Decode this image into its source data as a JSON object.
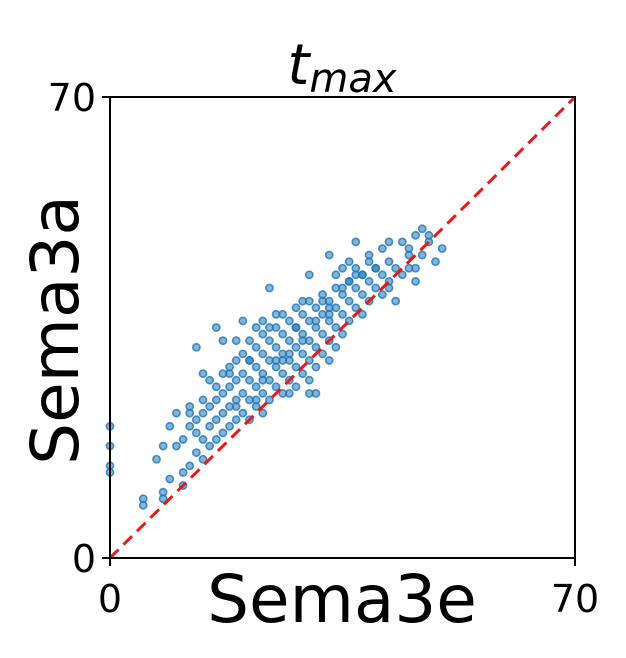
{
  "chart_data": {
    "type": "scatter",
    "title": {
      "main": "t",
      "sub": "max"
    },
    "xlabel": "Sema3e",
    "ylabel": "Sema3a",
    "xlim": [
      0,
      70
    ],
    "ylim": [
      0,
      70
    ],
    "xticks": [
      0,
      70
    ],
    "yticks": [
      0,
      70
    ],
    "xtick_labels": [
      "0",
      "70"
    ],
    "ytick_labels": [
      "0",
      "70"
    ],
    "grid": false,
    "reference_line": {
      "from": [
        0,
        0
      ],
      "to": [
        70,
        70
      ],
      "style": "dashed",
      "color": "#e41a1c"
    },
    "point_color": "#1f77b4",
    "series": [
      {
        "points": [
          [
            0,
            20
          ],
          [
            0,
            17
          ],
          [
            0,
            14
          ],
          [
            0,
            13
          ],
          [
            5,
            9
          ],
          [
            5,
            8
          ],
          [
            7,
            15
          ],
          [
            8,
            10
          ],
          [
            8,
            9
          ],
          [
            9,
            12
          ],
          [
            10,
            17
          ],
          [
            11,
            18
          ],
          [
            11,
            13
          ],
          [
            11,
            11
          ],
          [
            12,
            14
          ],
          [
            12,
            20
          ],
          [
            12,
            23
          ],
          [
            13,
            16
          ],
          [
            13,
            19
          ],
          [
            13,
            21
          ],
          [
            14,
            15
          ],
          [
            14,
            18
          ],
          [
            14,
            22
          ],
          [
            14,
            24
          ],
          [
            15,
            17
          ],
          [
            15,
            20
          ],
          [
            15,
            23
          ],
          [
            16,
            18
          ],
          [
            16,
            21
          ],
          [
            16,
            24
          ],
          [
            16,
            26
          ],
          [
            17,
            19
          ],
          [
            17,
            22
          ],
          [
            17,
            25
          ],
          [
            17,
            28
          ],
          [
            18,
            20
          ],
          [
            18,
            23
          ],
          [
            18,
            26
          ],
          [
            18,
            29
          ],
          [
            19,
            21
          ],
          [
            19,
            24
          ],
          [
            19,
            27
          ],
          [
            19,
            30
          ],
          [
            20,
            22
          ],
          [
            20,
            25
          ],
          [
            20,
            28
          ],
          [
            20,
            31
          ],
          [
            21,
            21
          ],
          [
            21,
            24
          ],
          [
            21,
            27
          ],
          [
            21,
            30
          ],
          [
            21,
            33
          ],
          [
            22,
            23
          ],
          [
            22,
            26
          ],
          [
            22,
            29
          ],
          [
            22,
            32
          ],
          [
            23,
            22
          ],
          [
            23,
            25
          ],
          [
            23,
            28
          ],
          [
            23,
            31
          ],
          [
            23,
            34
          ],
          [
            24,
            24
          ],
          [
            24,
            27
          ],
          [
            24,
            30
          ],
          [
            24,
            33
          ],
          [
            25,
            26
          ],
          [
            25,
            29
          ],
          [
            25,
            32
          ],
          [
            25,
            35
          ],
          [
            26,
            25
          ],
          [
            26,
            28
          ],
          [
            26,
            31
          ],
          [
            26,
            34
          ],
          [
            26,
            37
          ],
          [
            27,
            27
          ],
          [
            27,
            30
          ],
          [
            27,
            33
          ],
          [
            27,
            36
          ],
          [
            28,
            26
          ],
          [
            28,
            29
          ],
          [
            28,
            32
          ],
          [
            28,
            35
          ],
          [
            28,
            38
          ],
          [
            29,
            28
          ],
          [
            29,
            31
          ],
          [
            29,
            34
          ],
          [
            29,
            37
          ],
          [
            30,
            27
          ],
          [
            30,
            30
          ],
          [
            30,
            33
          ],
          [
            30,
            36
          ],
          [
            30,
            39
          ],
          [
            31,
            29
          ],
          [
            31,
            32
          ],
          [
            31,
            35
          ],
          [
            31,
            38
          ],
          [
            32,
            31
          ],
          [
            32,
            34
          ],
          [
            32,
            37
          ],
          [
            32,
            40
          ],
          [
            33,
            30
          ],
          [
            33,
            33
          ],
          [
            33,
            36
          ],
          [
            33,
            39
          ],
          [
            34,
            32
          ],
          [
            34,
            35
          ],
          [
            34,
            38
          ],
          [
            34,
            41
          ],
          [
            35,
            34
          ],
          [
            35,
            37
          ],
          [
            35,
            40
          ],
          [
            36,
            36
          ],
          [
            36,
            39
          ],
          [
            36,
            42
          ],
          [
            37,
            38
          ],
          [
            37,
            41
          ],
          [
            37,
            44
          ],
          [
            38,
            37
          ],
          [
            38,
            40
          ],
          [
            38,
            43
          ],
          [
            39,
            39
          ],
          [
            39,
            42
          ],
          [
            40,
            41
          ],
          [
            40,
            44
          ],
          [
            41,
            40
          ],
          [
            41,
            43
          ],
          [
            42,
            42
          ],
          [
            42,
            45
          ],
          [
            43,
            44
          ],
          [
            44,
            43
          ],
          [
            45,
            46
          ],
          [
            44,
            48
          ],
          [
            46,
            42
          ],
          [
            46,
            44
          ],
          [
            47,
            46
          ],
          [
            48,
            48
          ],
          [
            49,
            45
          ],
          [
            50,
            47
          ],
          [
            21,
            30
          ],
          [
            22,
            35
          ],
          [
            13,
            32
          ],
          [
            20,
            36
          ],
          [
            24,
            41
          ],
          [
            23,
            36
          ],
          [
            30,
            43
          ],
          [
            33,
            46
          ],
          [
            37,
            48
          ],
          [
            42,
            48
          ],
          [
            45,
            47
          ],
          [
            45,
            44
          ],
          [
            46,
            49
          ],
          [
            47,
            50
          ],
          [
            48,
            49
          ],
          [
            16,
            35
          ],
          [
            17,
            33
          ],
          [
            19,
            33
          ],
          [
            24,
            35
          ],
          [
            25,
            37
          ],
          [
            30,
            25
          ],
          [
            31,
            25
          ],
          [
            26,
            30
          ],
          [
            27,
            25
          ],
          [
            28,
            35
          ],
          [
            29,
            39
          ],
          [
            34,
            43
          ],
          [
            35,
            44
          ],
          [
            36,
            42
          ],
          [
            39,
            46
          ],
          [
            40,
            44
          ],
          [
            41,
            47
          ],
          [
            42,
            41
          ],
          [
            43,
            39
          ],
          [
            38,
            43
          ],
          [
            32,
            39
          ],
          [
            33,
            37
          ],
          [
            36,
            45
          ],
          [
            18,
            28
          ],
          [
            19,
            23
          ],
          [
            15,
            27
          ],
          [
            14,
            28
          ],
          [
            12,
            22
          ],
          [
            10,
            22
          ],
          [
            9,
            20
          ],
          [
            8,
            17
          ],
          [
            22,
            24
          ],
          [
            23,
            27
          ],
          [
            25,
            30
          ],
          [
            27,
            31
          ],
          [
            29,
            33
          ],
          [
            31,
            36
          ],
          [
            33,
            38
          ],
          [
            35,
            41
          ],
          [
            37,
            43
          ],
          [
            39,
            45
          ]
        ]
      }
    ]
  }
}
